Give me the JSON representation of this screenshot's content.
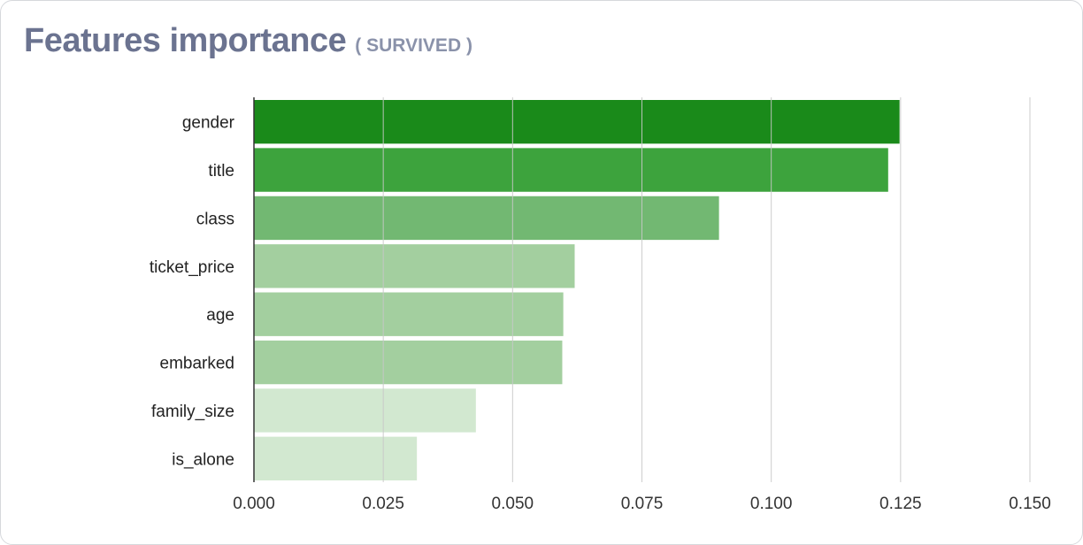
{
  "header": {
    "title": "Features importance",
    "subtitle": "( SURVIVED )"
  },
  "colors": {
    "title": "#6b7390",
    "subtitle": "#8a92aa",
    "bar_levels": [
      "#1a8a1a",
      "#3da33d",
      "#72b872",
      "#a3cf9f",
      "#d2e8d0"
    ],
    "grid": "#c8c8c8",
    "axis": "#333333"
  },
  "chart_data": {
    "type": "bar",
    "orientation": "horizontal",
    "title": "Features importance",
    "subtitle": "( SURVIVED )",
    "categories": [
      "gender",
      "title",
      "class",
      "ticket_price",
      "age",
      "embarked",
      "family_size",
      "is_alone"
    ],
    "values": [
      0.1248,
      0.1226,
      0.0899,
      0.062,
      0.0598,
      0.0596,
      0.0429,
      0.0315
    ],
    "color_levels": [
      0,
      1,
      2,
      3,
      3,
      3,
      4,
      4
    ],
    "xlim": [
      0,
      0.15
    ],
    "xticks": [
      "0.000",
      "0.025",
      "0.050",
      "0.075",
      "0.100",
      "0.125",
      "0.150"
    ],
    "xtick_values": [
      0,
      0.025,
      0.05,
      0.075,
      0.1,
      0.125,
      0.15
    ],
    "grid": true,
    "legend": "none"
  }
}
